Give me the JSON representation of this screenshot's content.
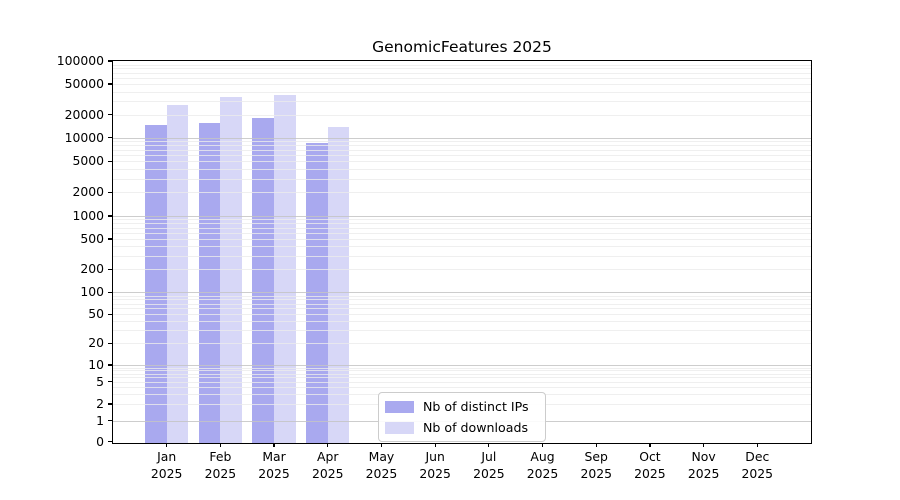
{
  "title": "GenomicFeatures 2025",
  "colors": {
    "distinct_ips_bar": "#a9a9ef",
    "downloads_bar": "#d7d7f7",
    "grid_major": "#c4c4c4",
    "grid_minor": "#ebebeb",
    "axis": "#000000"
  },
  "legend": {
    "items": [
      {
        "label": "Nb of distinct IPs",
        "color": "#a9a9ef"
      },
      {
        "label": "Nb of downloads",
        "color": "#d7d7f7"
      }
    ]
  },
  "y_axis": {
    "tick_labels": [
      "100000",
      "50000",
      "20000",
      "10000",
      "5000",
      "2000",
      "1000",
      "500",
      "200",
      "100",
      "50",
      "20",
      "10",
      "5",
      "2",
      "1",
      "0"
    ]
  },
  "x_axis": {
    "tick_labels": [
      {
        "month": "Jan",
        "year": "2025"
      },
      {
        "month": "Feb",
        "year": "2025"
      },
      {
        "month": "Mar",
        "year": "2025"
      },
      {
        "month": "Apr",
        "year": "2025"
      },
      {
        "month": "May",
        "year": "2025"
      },
      {
        "month": "Jun",
        "year": "2025"
      },
      {
        "month": "Jul",
        "year": "2025"
      },
      {
        "month": "Aug",
        "year": "2025"
      },
      {
        "month": "Sep",
        "year": "2025"
      },
      {
        "month": "Oct",
        "year": "2025"
      },
      {
        "month": "Nov",
        "year": "2025"
      },
      {
        "month": "Dec",
        "year": "2025"
      }
    ]
  },
  "chart_data": {
    "type": "bar",
    "title": "GenomicFeatures 2025",
    "categories": [
      "Jan 2025",
      "Feb 2025",
      "Mar 2025",
      "Apr 2025",
      "May 2025",
      "Jun 2025",
      "Jul 2025",
      "Aug 2025",
      "Sep 2025",
      "Oct 2025",
      "Nov 2025",
      "Dec 2025"
    ],
    "series": [
      {
        "name": "Nb of distinct IPs",
        "color": "#a9a9ef",
        "values": [
          14500,
          15600,
          18200,
          8450,
          null,
          null,
          null,
          null,
          null,
          null,
          null,
          null
        ]
      },
      {
        "name": "Nb of downloads",
        "color": "#d7d7f7",
        "values": [
          26700,
          34000,
          35700,
          13800,
          null,
          null,
          null,
          null,
          null,
          null,
          null,
          null
        ]
      }
    ],
    "xlabel": "",
    "ylabel": "",
    "yscale": "symlog",
    "ylim": [
      0,
      100000
    ],
    "yticks": [
      0,
      1,
      2,
      5,
      10,
      20,
      50,
      100,
      200,
      500,
      1000,
      2000,
      5000,
      10000,
      20000,
      50000,
      100000
    ],
    "grid": "horizontal, major and minor, drawn over bars",
    "legend_position": "lower center"
  }
}
